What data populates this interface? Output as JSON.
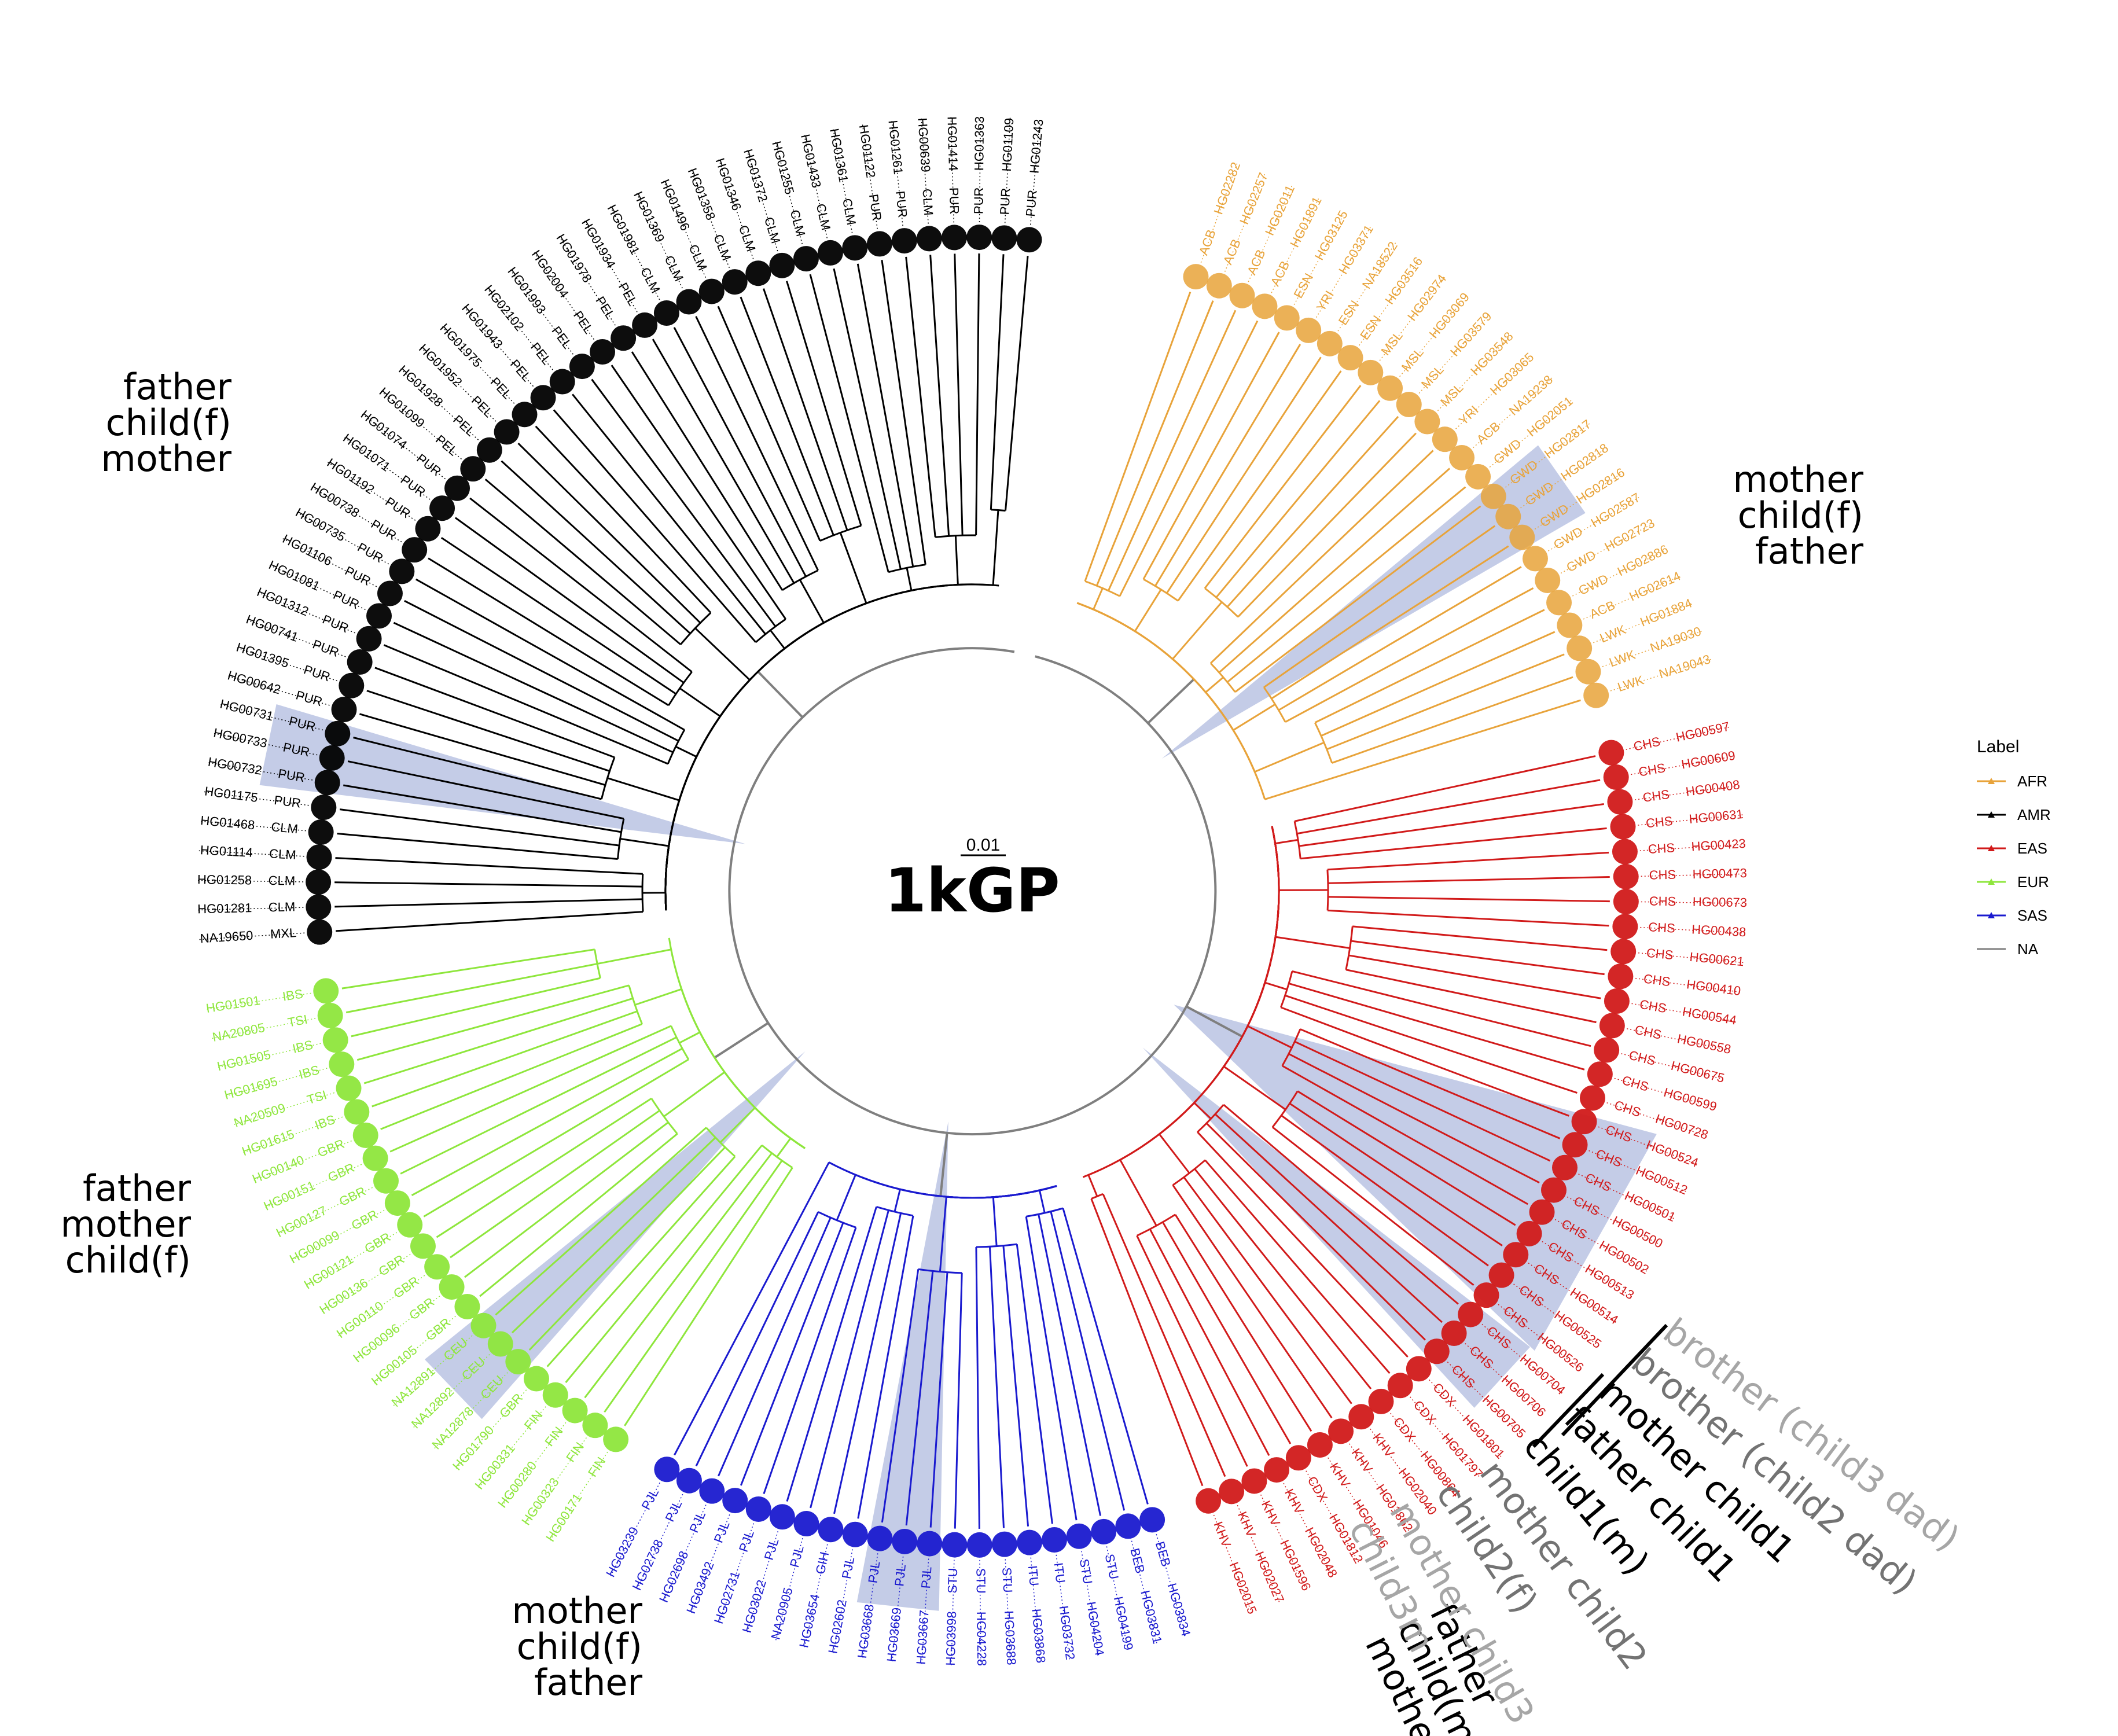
{
  "center_title": "1kGP",
  "scale_label": "0.01",
  "legend": {
    "title": "Label",
    "items": [
      {
        "label": "AFR",
        "color": "#E8A33A"
      },
      {
        "label": "AMR",
        "color": "#000000"
      },
      {
        "label": "EAS",
        "color": "#D11A1A"
      },
      {
        "label": "EUR",
        "color": "#8EE63C"
      },
      {
        "label": "SAS",
        "color": "#1A1ACF"
      },
      {
        "label": "NA",
        "color": "#7F7F7F"
      }
    ]
  },
  "clades": [
    {
      "group": "AFR",
      "color": "#E8A33A",
      "tips": [
        [
          "HG02282",
          "ACB"
        ],
        [
          "HG02257",
          "ACB"
        ],
        [
          "HG02011",
          "ACB"
        ],
        [
          "HG01891",
          "ACB"
        ],
        [
          "HG03125",
          "ESN"
        ],
        [
          "HG03371",
          "YRI"
        ],
        [
          "NA18522",
          "ESN"
        ],
        [
          "HG03516",
          "ESN"
        ],
        [
          "HG02974",
          "MSL"
        ],
        [
          "HG03069",
          "MSL"
        ],
        [
          "HG03579",
          "MSL"
        ],
        [
          "HG03548",
          "MSL"
        ],
        [
          "HG03065",
          "YRI"
        ],
        [
          "NA19238",
          "ACB"
        ],
        [
          "HG02051",
          "GWD"
        ],
        [
          "HG02817",
          "GWD"
        ],
        [
          "HG02818",
          "GWD"
        ],
        [
          "HG02816",
          "GWD"
        ],
        [
          "HG02587",
          "GWD"
        ],
        [
          "HG02723",
          "GWD"
        ],
        [
          "HG02886",
          "GWD"
        ],
        [
          "HG02614",
          "ACB"
        ],
        [
          "HG01884",
          "LWK"
        ],
        [
          "NA19030",
          "LWK"
        ],
        [
          "NA19043",
          "LWK"
        ]
      ]
    },
    {
      "group": "EAS",
      "color": "#D11A1A",
      "tips": [
        [
          "HG00597",
          "CHS"
        ],
        [
          "HG00609",
          "CHS"
        ],
        [
          "HG00408",
          "CHS"
        ],
        [
          "HG00631",
          "CHS"
        ],
        [
          "HG00423",
          "CHS"
        ],
        [
          "HG00473",
          "CHS"
        ],
        [
          "HG00673",
          "CHS"
        ],
        [
          "HG00438",
          "CHS"
        ],
        [
          "HG00621",
          "CHS"
        ],
        [
          "HG00410",
          "CHS"
        ],
        [
          "HG00544",
          "CHS"
        ],
        [
          "HG00558",
          "CHS"
        ],
        [
          "HG00675",
          "CHS"
        ],
        [
          "HG00599",
          "CHS"
        ],
        [
          "HG00728",
          "CHS"
        ],
        [
          "HG00524",
          "CHS"
        ],
        [
          "HG00512",
          "CHS"
        ],
        [
          "HG00501",
          "CHS"
        ],
        [
          "HG00500",
          "CHS"
        ],
        [
          "HG00502",
          "CHS"
        ],
        [
          "HG00513",
          "CHS"
        ],
        [
          "HG00514",
          "CHS"
        ],
        [
          "HG00525",
          "CHS"
        ],
        [
          "HG00526",
          "CHS"
        ],
        [
          "HG00704",
          "CHS"
        ],
        [
          "HG00706",
          "CHS"
        ],
        [
          "HG00705",
          "CHS"
        ],
        [
          "HG01801",
          "CDX"
        ],
        [
          "HG01797",
          "CDX"
        ],
        [
          "HG00864",
          "CDX"
        ],
        [
          "HG02040",
          "KHV"
        ],
        [
          "HG01862",
          "KHV"
        ],
        [
          "HG01046",
          "KHV"
        ],
        [
          "HG01812",
          "CDX"
        ],
        [
          "HG02048",
          "KHV"
        ],
        [
          "HG01596",
          "KHV"
        ],
        [
          "HG02027",
          "KHV"
        ],
        [
          "HG02015",
          "KHV"
        ]
      ]
    },
    {
      "group": "SAS",
      "color": "#1A1ACF",
      "tips": [
        [
          "HG03834",
          "BEB"
        ],
        [
          "HG03831",
          "BEB"
        ],
        [
          "HG04199",
          "STU"
        ],
        [
          "HG04204",
          "STU"
        ],
        [
          "HG03732",
          "ITU"
        ],
        [
          "HG03868",
          "ITU"
        ],
        [
          "HG03688",
          "STU"
        ],
        [
          "HG04228",
          "STU"
        ],
        [
          "HG03998",
          "STU"
        ],
        [
          "HG03667",
          "PJL"
        ],
        [
          "HG03669",
          "PJL"
        ],
        [
          "HG03668",
          "PJL"
        ],
        [
          "HG02602",
          "PJL"
        ],
        [
          "HG03654",
          "GIH"
        ],
        [
          "NA20905",
          "PJL"
        ],
        [
          "HG03022",
          "PJL"
        ],
        [
          "HG02731",
          "PJL"
        ],
        [
          "HG03492",
          "PJL"
        ],
        [
          "HG02698",
          "PJL"
        ],
        [
          "HG02738",
          "PJL"
        ],
        [
          "HG03239",
          "PJL"
        ]
      ]
    },
    {
      "group": "EUR",
      "color": "#8EE63C",
      "tips": [
        [
          "HG00171",
          "FIN"
        ],
        [
          "HG00323",
          "FIN"
        ],
        [
          "HG00280",
          "FIN"
        ],
        [
          "HG00331",
          "FIN"
        ],
        [
          "HG01790",
          "GBR"
        ],
        [
          "NA12878",
          "CEU"
        ],
        [
          "NA12892",
          "CEU"
        ],
        [
          "NA12891",
          "CEU"
        ],
        [
          "HG00105",
          "GBR"
        ],
        [
          "HG00096",
          "GBR"
        ],
        [
          "HG00110",
          "GBR"
        ],
        [
          "HG00136",
          "GBR"
        ],
        [
          "HG00121",
          "GBR"
        ],
        [
          "HG00099",
          "GBR"
        ],
        [
          "HG00127",
          "GBR"
        ],
        [
          "HG00151",
          "GBR"
        ],
        [
          "HG00140",
          "GBR"
        ],
        [
          "HG01615",
          "IBS"
        ],
        [
          "NA20509",
          "TSI"
        ],
        [
          "HG01695",
          "IBS"
        ],
        [
          "HG01505",
          "IBS"
        ],
        [
          "NA20805",
          "TSI"
        ],
        [
          "HG01501",
          "IBS"
        ]
      ]
    },
    {
      "group": "AMR",
      "color": "#000000",
      "tips": [
        [
          "NA19650",
          "MXL"
        ],
        [
          "HG01281",
          "CLM"
        ],
        [
          "HG01258",
          "CLM"
        ],
        [
          "HG01114",
          "CLM"
        ],
        [
          "HG01468",
          "CLM"
        ],
        [
          "HG01175",
          "PUR"
        ],
        [
          "HG00732",
          "PUR"
        ],
        [
          "HG00733",
          "PUR"
        ],
        [
          "HG00731",
          "PUR"
        ],
        [
          "HG00642",
          "PUR"
        ],
        [
          "HG01395",
          "PUR"
        ],
        [
          "HG00741",
          "PUR"
        ],
        [
          "HG01312",
          "PUR"
        ],
        [
          "HG01081",
          "PUR"
        ],
        [
          "HG01106",
          "PUR"
        ],
        [
          "HG00735",
          "PUR"
        ],
        [
          "HG00738",
          "PUR"
        ],
        [
          "HG01192",
          "PUR"
        ],
        [
          "HG01071",
          "PUR"
        ],
        [
          "HG01074",
          "PUR"
        ],
        [
          "HG01099",
          "PEL"
        ],
        [
          "HG01928",
          "PEL"
        ],
        [
          "HG01952",
          "PEL"
        ],
        [
          "HG01975",
          "PEL"
        ],
        [
          "HG01943",
          "PEL"
        ],
        [
          "HG02102",
          "PEL"
        ],
        [
          "HG01993",
          "PEL"
        ],
        [
          "HG02004",
          "PEL"
        ],
        [
          "HG01978",
          "PEL"
        ],
        [
          "HG01934",
          "PEL"
        ],
        [
          "HG01981",
          "CLM"
        ],
        [
          "HG01369",
          "CLM"
        ],
        [
          "HG01496",
          "CLM"
        ],
        [
          "HG01358",
          "CLM"
        ],
        [
          "HG01346",
          "CLM"
        ],
        [
          "HG01372",
          "CLM"
        ],
        [
          "HG01255",
          "CLM"
        ],
        [
          "HG01433",
          "CLM"
        ],
        [
          "HG01361",
          "CLM"
        ],
        [
          "HG01122",
          "PUR"
        ],
        [
          "HG01261",
          "PUR"
        ],
        [
          "HG00639",
          "CLM"
        ],
        [
          "HG01414",
          "PUR"
        ],
        [
          "HG01363",
          "PUR"
        ],
        [
          "HG01109",
          "PUR"
        ],
        [
          "HG01243",
          "PUR"
        ]
      ]
    }
  ],
  "trio_labels": [
    {
      "lines": [
        "mother",
        "child(f)",
        "father"
      ]
    },
    {
      "lines": [
        "father",
        "child(f)",
        "mother"
      ]
    },
    {
      "lines": [
        "father",
        "mother",
        "child(f)"
      ]
    },
    {
      "lines": [
        "mother",
        "child(f)",
        "father"
      ]
    },
    {
      "lines": [
        "father",
        "child(m)",
        "mother"
      ]
    }
  ],
  "family_labels": [
    {
      "text": "brother (child3 dad)",
      "color": "#A6A6A6"
    },
    {
      "text": "brother (child2 dad)",
      "color": "#737373"
    },
    {
      "text": "mother child1",
      "color": "#000000"
    },
    {
      "text": "father child1",
      "color": "#000000"
    },
    {
      "text": "child1(m)",
      "color": "#000000"
    },
    {
      "text": "mother child2",
      "color": "#737373"
    },
    {
      "text": "child2(f)",
      "color": "#737373"
    },
    {
      "text": "mother child3",
      "color": "#A6A6A6"
    },
    {
      "text": "child3m",
      "color": "#A6A6A6"
    }
  ]
}
